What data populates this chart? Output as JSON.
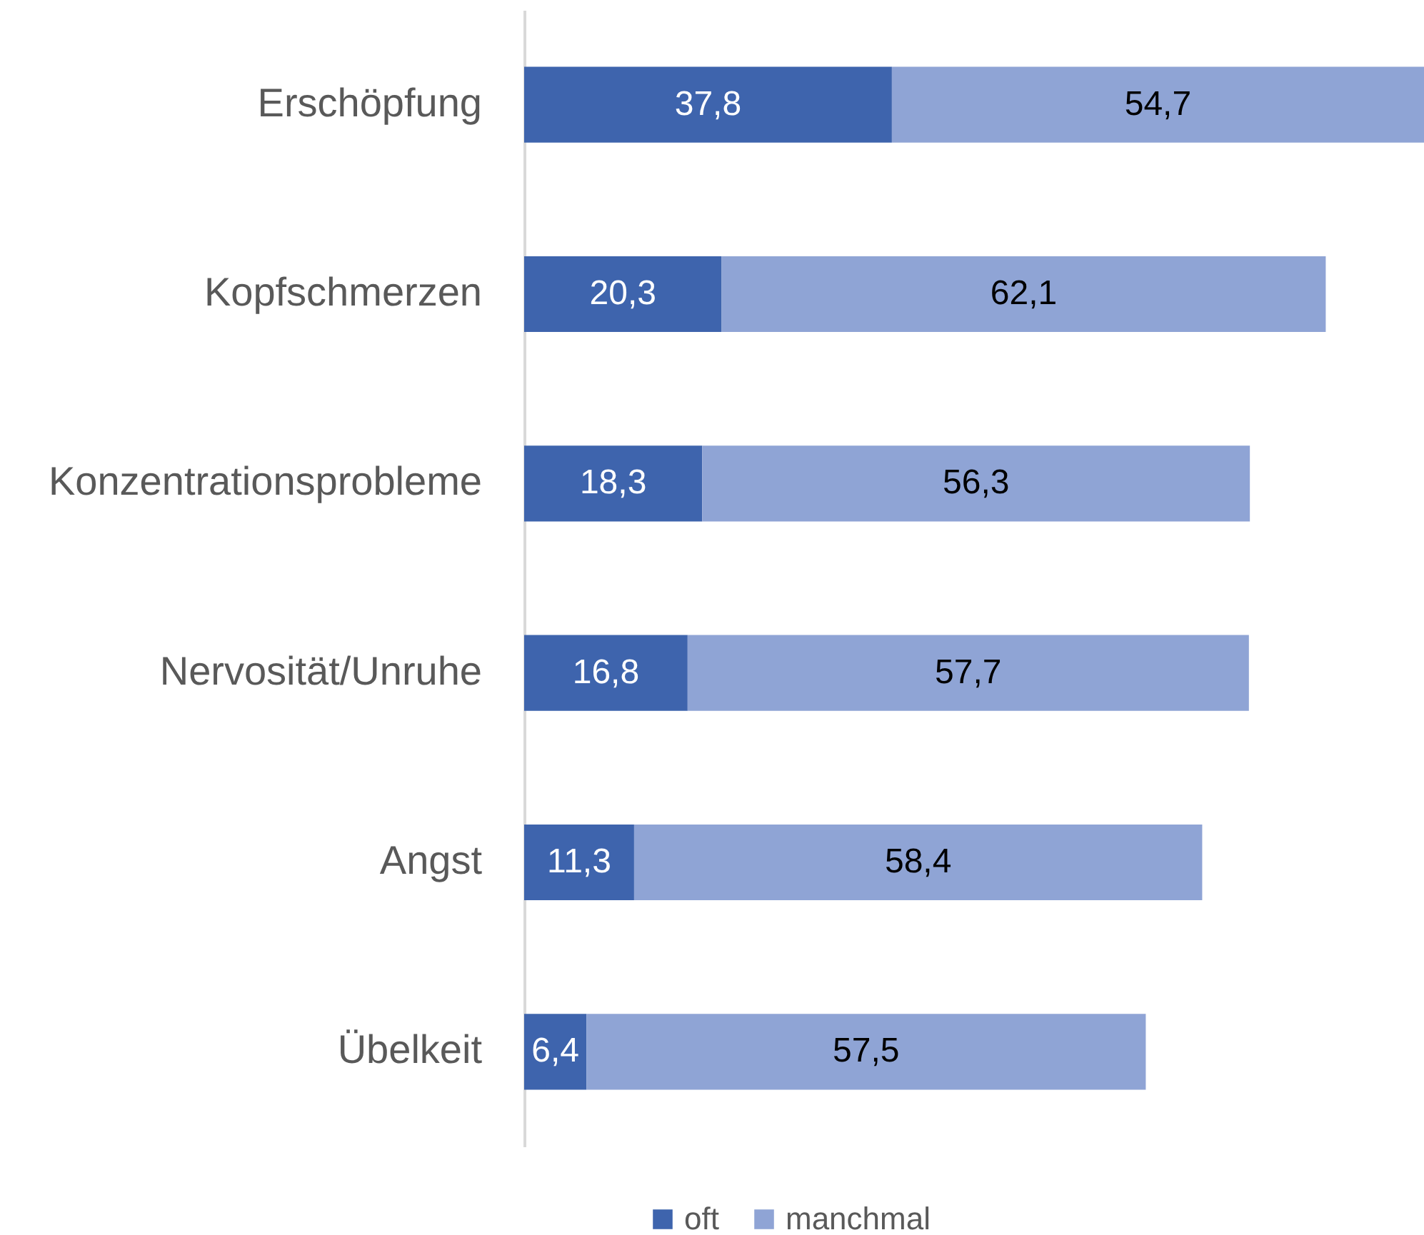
{
  "chart_data": {
    "type": "bar",
    "orientation": "horizontal",
    "stacked": true,
    "categories": [
      "Erschöpfung",
      "Kopfschmerzen",
      "Konzentrationsprobleme",
      "Nervosität/Unruhe",
      "Angst",
      "Übelkeit"
    ],
    "series": [
      {
        "name": "oft",
        "color": "#3e64ad",
        "values": [
          37.8,
          20.3,
          18.3,
          16.8,
          11.3,
          6.4
        ],
        "value_labels": [
          "37,8",
          "20,3",
          "18,3",
          "16,8",
          "11,3",
          "6,4"
        ]
      },
      {
        "name": "manchmal",
        "color": "#8fa4d5",
        "values": [
          54.7,
          62.1,
          56.3,
          57.7,
          58.4,
          57.5
        ],
        "value_labels": [
          "54,7",
          "62,1",
          "56,3",
          "57,7",
          "58,4",
          "57,5"
        ]
      }
    ],
    "legend": "bottom"
  }
}
